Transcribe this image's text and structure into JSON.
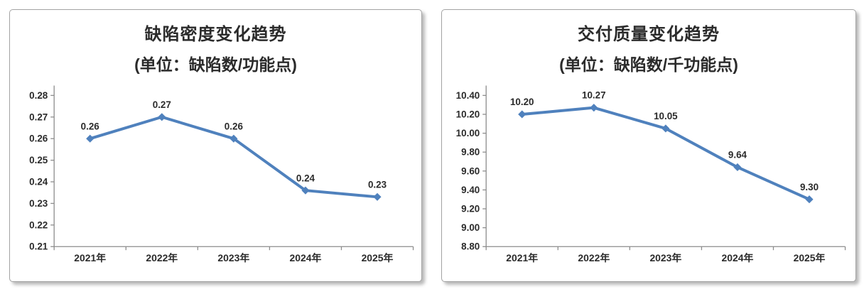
{
  "colors": {
    "series_blue": "#4F81BD",
    "axis_gray": "#8c8c8c",
    "text_dark": "#2b2b2b",
    "panel_border": "#a3a3a3",
    "background": "#ffffff"
  },
  "chart_data": [
    {
      "type": "line",
      "title": "缺陷密度变化趋势",
      "subtitle": "(单位：缺陷数/功能点)",
      "categories": [
        "2021年",
        "2022年",
        "2023年",
        "2024年",
        "2025年"
      ],
      "series": [
        {
          "name": "缺陷密度",
          "values": [
            0.26,
            0.27,
            0.26,
            0.236,
            0.233
          ],
          "data_labels": [
            "0.26",
            "0.27",
            "0.26",
            "0.24",
            "0.23"
          ],
          "color": "#4F81BD",
          "marker": "diamond"
        }
      ],
      "ylim": [
        0.21,
        0.28
      ],
      "y_ticks": [
        "0.28",
        "0.27",
        "0.26",
        "0.25",
        "0.24",
        "0.23",
        "0.22",
        "0.21"
      ],
      "grid": false,
      "legend": "none"
    },
    {
      "type": "line",
      "title": "交付质量变化趋势",
      "subtitle": "(单位：缺陷数/千功能点)",
      "categories": [
        "2021年",
        "2022年",
        "2023年",
        "2024年",
        "2025年"
      ],
      "series": [
        {
          "name": "交付质量",
          "values": [
            10.2,
            10.27,
            10.05,
            9.64,
            9.3
          ],
          "data_labels": [
            "10.20",
            "10.27",
            "10.05",
            "9.64",
            "9.30"
          ],
          "color": "#4F81BD",
          "marker": "diamond"
        }
      ],
      "ylim": [
        8.8,
        10.4
      ],
      "y_ticks": [
        "10.40",
        "10.20",
        "10.00",
        "9.80",
        "9.60",
        "9.40",
        "9.20",
        "9.00",
        "8.80"
      ],
      "grid": false,
      "legend": "none"
    }
  ]
}
